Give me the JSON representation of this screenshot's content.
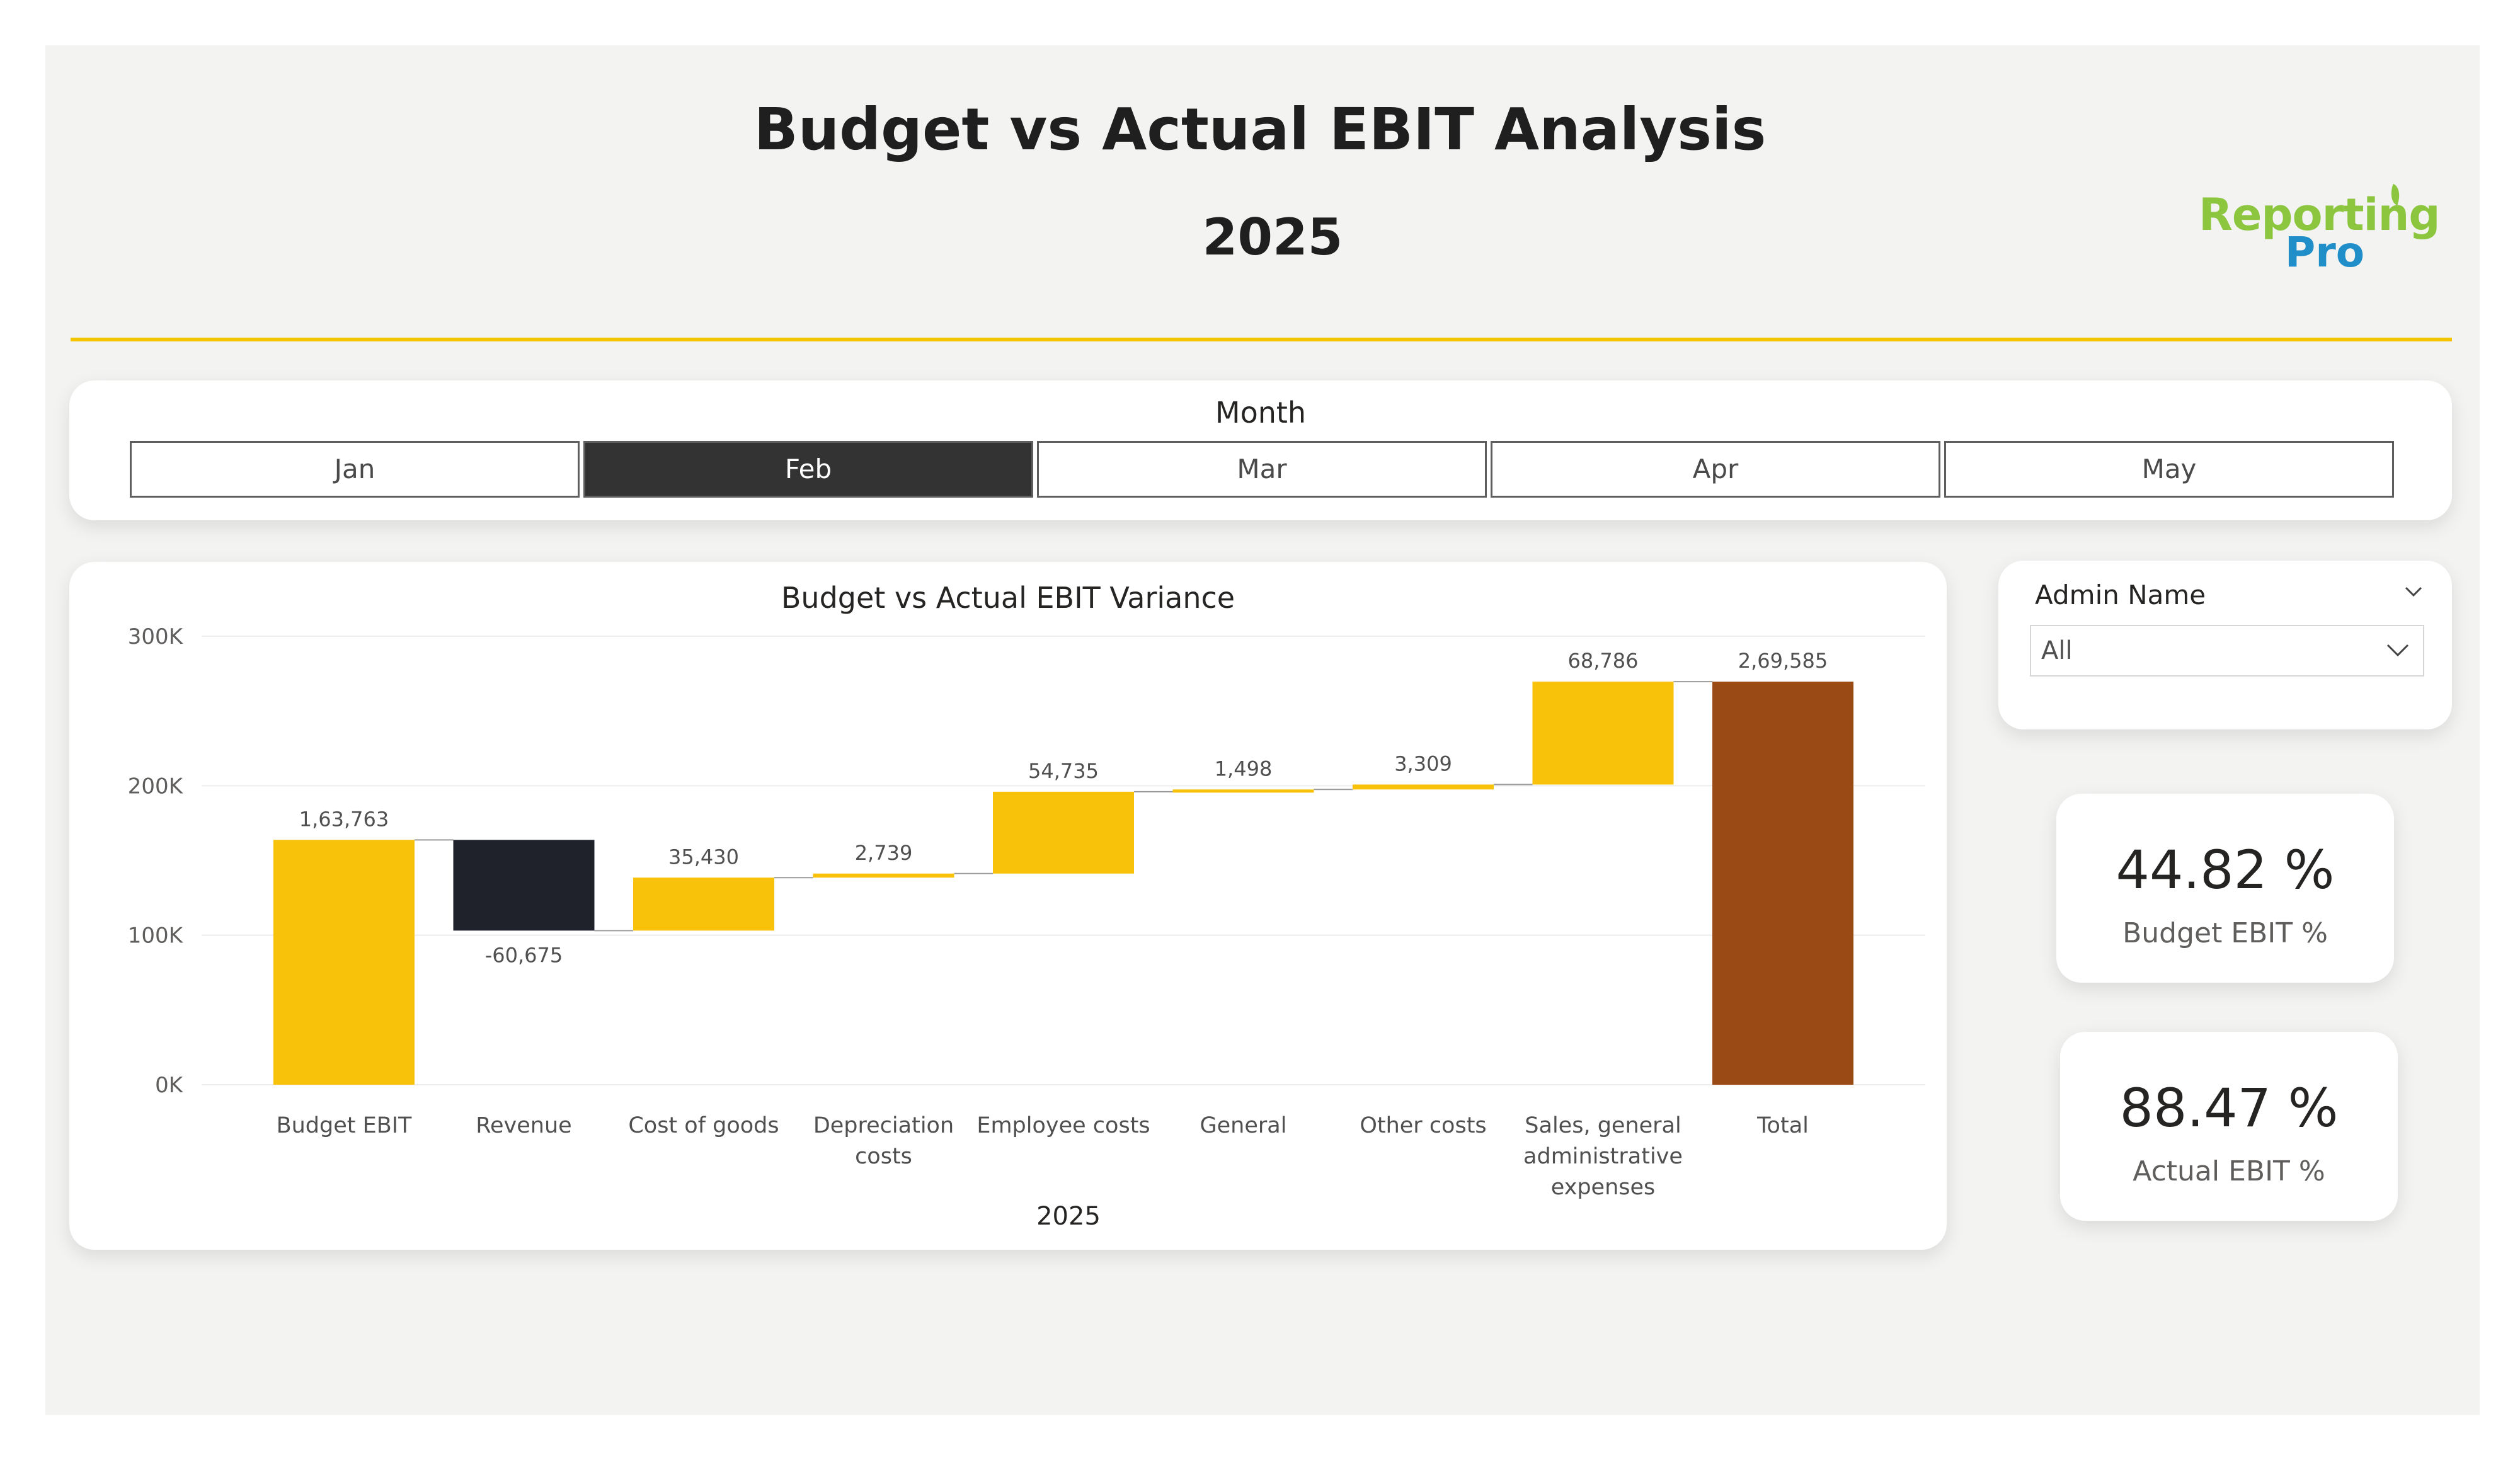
{
  "header": {
    "title": "Budget vs Actual EBIT Analysis",
    "subtitle": "2025",
    "logo_line1": "Reporting",
    "logo_line2": "Pro"
  },
  "month_slicer": {
    "title": "Month",
    "options": [
      "Jan",
      "Feb",
      "Mar",
      "Apr",
      "May"
    ],
    "selected": "Feb"
  },
  "admin_filter": {
    "label": "Admin Name",
    "selected": "All"
  },
  "kpis": [
    {
      "value": "44.82 %",
      "label": "Budget EBIT %"
    },
    {
      "value": "88.47 %",
      "label": "Actual EBIT %"
    }
  ],
  "colors": {
    "increase": "#f9c20a",
    "decrease": "#1f212b",
    "total": "#9a4a15",
    "accent_line": "#f2c500",
    "selected_month": "#333333"
  },
  "chart_data": {
    "type": "waterfall",
    "title": "Budget vs Actual EBIT Variance",
    "xlabel": "2025",
    "ylabel": "",
    "ylim": [
      0,
      300000
    ],
    "yticks": [
      "0K",
      "100K",
      "200K",
      "300K"
    ],
    "grid": true,
    "categories": [
      "Budget EBIT",
      "Revenue",
      "Cost of goods",
      "Depreciation costs",
      "Employee costs",
      "General",
      "Other costs",
      "Sales, general administrative expenses",
      "Total"
    ],
    "category_lines": [
      [
        "Budget EBIT"
      ],
      [
        "Revenue"
      ],
      [
        "Cost of goods"
      ],
      [
        "Depreciation",
        "costs"
      ],
      [
        "Employee costs"
      ],
      [
        "General"
      ],
      [
        "Other costs"
      ],
      [
        "Sales, general",
        "administrative",
        "expenses"
      ],
      [
        "Total"
      ]
    ],
    "values": [
      163763,
      -60675,
      35430,
      2739,
      54735,
      1498,
      3309,
      68786,
      269585
    ],
    "labels": [
      "1,63,763",
      "-60,675",
      "35,430",
      "2,739",
      "54,735",
      "1,498",
      "3,309",
      "68,786",
      "2,69,585"
    ],
    "kinds": [
      "start",
      "delta",
      "delta",
      "delta",
      "delta",
      "delta",
      "delta",
      "delta",
      "total"
    ]
  }
}
